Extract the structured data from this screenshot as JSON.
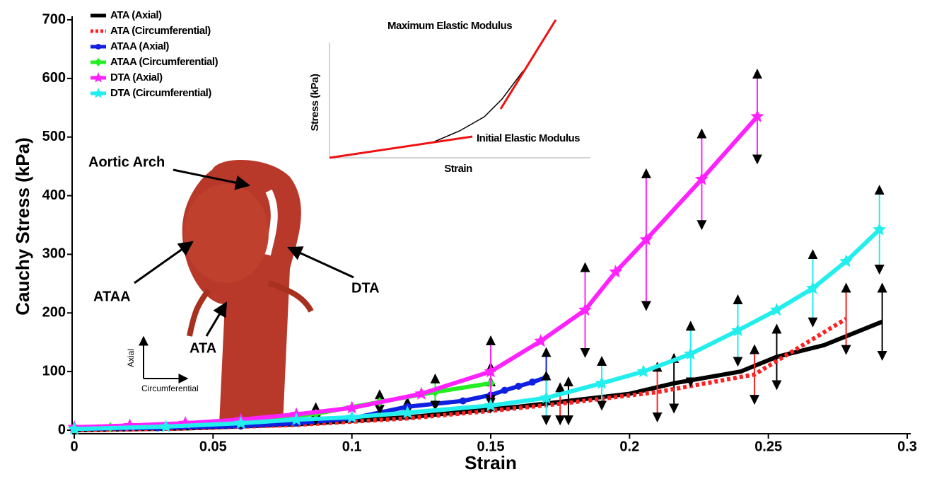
{
  "chart_data": {
    "type": "line",
    "xlabel": "Strain",
    "ylabel": "Cauchy Stress (kPa)",
    "xlim": [
      0,
      0.3
    ],
    "ylim": [
      0,
      700
    ],
    "xticks": [
      0,
      0.05,
      0.1,
      0.15,
      0.2,
      0.25,
      0.3
    ],
    "yticks": [
      0,
      100,
      200,
      300,
      400,
      500,
      600,
      700
    ],
    "legend": "upper-left",
    "series": [
      {
        "name": "ATA (Axial)",
        "color": "#000000",
        "style": "solid",
        "marker": "none",
        "x": [
          0,
          0.04,
          0.08,
          0.12,
          0.16,
          0.178,
          0.2,
          0.216,
          0.24,
          0.253,
          0.27,
          0.291
        ],
        "values": [
          0,
          3,
          10,
          22,
          40,
          50,
          62,
          80,
          100,
          125,
          145,
          185
        ],
        "errors": [
          null,
          null,
          null,
          null,
          null,
          40,
          null,
          50,
          null,
          55,
          null,
          65
        ]
      },
      {
        "name": "ATA (Circumferential)",
        "color": "#ff2020",
        "style": "dotted",
        "marker": "none",
        "x": [
          0,
          0.04,
          0.08,
          0.12,
          0.15,
          0.175,
          0.21,
          0.245,
          0.278
        ],
        "values": [
          0,
          3,
          9,
          20,
          33,
          45,
          65,
          95,
          190
        ],
        "errors": [
          null,
          null,
          null,
          null,
          null,
          35,
          50,
          50,
          60
        ]
      },
      {
        "name": "ATAA (Axial)",
        "color": "#1020e0",
        "style": "solid",
        "marker": "circle",
        "x": [
          0,
          0.03,
          0.06,
          0.08,
          0.1,
          0.12,
          0.13,
          0.14,
          0.15,
          0.155,
          0.16,
          0.165,
          0.17
        ],
        "values": [
          2,
          4,
          7,
          12,
          20,
          40,
          45,
          50,
          60,
          68,
          75,
          82,
          90
        ],
        "errors": [
          null,
          null,
          null,
          null,
          null,
          15,
          null,
          null,
          30,
          null,
          null,
          null,
          50
        ]
      },
      {
        "name": "ATAA (Circumferential)",
        "color": "#22ee22",
        "style": "solid",
        "marker": "diamond",
        "x": [
          0,
          0.013,
          0.06,
          0.087,
          0.11,
          0.13,
          0.15
        ],
        "values": [
          3,
          5,
          15,
          28,
          48,
          65,
          80
        ],
        "errors": [
          null,
          null,
          12,
          18,
          20,
          30,
          35
        ]
      },
      {
        "name": "DTA (Axial)",
        "color": "#ff22ff",
        "style": "solid",
        "marker": "star",
        "x": [
          0,
          0.02,
          0.04,
          0.06,
          0.08,
          0.1,
          0.125,
          0.15,
          0.168,
          0.184,
          0.195,
          0.206,
          0.226,
          0.246
        ],
        "values": [
          5,
          8,
          12,
          18,
          27,
          38,
          62,
          100,
          152,
          205,
          270,
          325,
          428,
          535
        ],
        "errors": [
          null,
          null,
          null,
          null,
          null,
          null,
          null,
          60,
          null,
          80,
          null,
          120,
          85,
          80
        ]
      },
      {
        "name": "DTA (Circumferential)",
        "color": "#22eeee",
        "style": "solid",
        "marker": "star",
        "x": [
          0,
          0.033,
          0.06,
          0.08,
          0.1,
          0.12,
          0.15,
          0.17,
          0.19,
          0.205,
          0.222,
          0.239,
          0.253,
          0.266,
          0.278,
          0.29
        ],
        "values": [
          2,
          6,
          12,
          18,
          22,
          30,
          42,
          55,
          80,
          100,
          130,
          170,
          205,
          242,
          288,
          342
        ],
        "errors": [
          null,
          null,
          null,
          null,
          null,
          null,
          null,
          45,
          45,
          null,
          55,
          60,
          null,
          65,
          null,
          75
        ]
      }
    ],
    "annotations": [
      "Aortic Arch",
      "ATAA",
      "ATA",
      "DTA"
    ],
    "orientation": [
      "Axial",
      "Circumferential"
    ],
    "inset": {
      "xlabel": "Strain",
      "ylabel": "Stress (kPa)",
      "labels": [
        "Maximum Elastic Modulus",
        "Initial Elastic Modulus"
      ]
    }
  }
}
